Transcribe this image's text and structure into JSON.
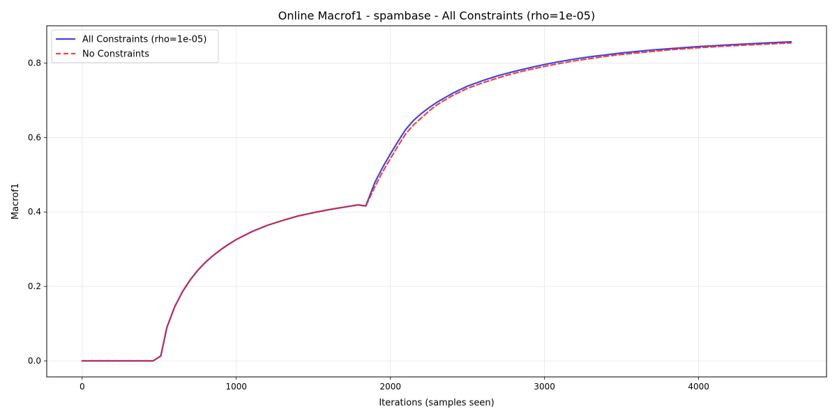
{
  "chart_data": {
    "type": "line",
    "title": "Online Macrof1 - spambase - All Constraints (rho=1e-05)",
    "xlabel": "Iterations (samples seen)",
    "ylabel": "Macrof1",
    "xlim": [
      -230,
      4830
    ],
    "ylim": [
      -0.043,
      0.9
    ],
    "xticks": [
      0,
      1000,
      2000,
      3000,
      4000
    ],
    "yticks": [
      0.0,
      0.2,
      0.4,
      0.6,
      0.8
    ],
    "xtick_labels": [
      "0",
      "1000",
      "2000",
      "3000",
      "4000"
    ],
    "ytick_labels": [
      "0.0",
      "0.2",
      "0.4",
      "0.6",
      "0.8"
    ],
    "grid": true,
    "legend_position": "top-left",
    "series": [
      {
        "name": "All Constraints (rho=1e-05)",
        "color": "#2222dd",
        "style": "solid",
        "x": [
          0,
          100,
          200,
          300,
          400,
          460,
          510,
          550,
          600,
          650,
          700,
          750,
          800,
          850,
          900,
          950,
          1000,
          1100,
          1200,
          1300,
          1400,
          1500,
          1600,
          1700,
          1790,
          1840,
          1900,
          1950,
          2000,
          2050,
          2100,
          2150,
          2200,
          2250,
          2300,
          2400,
          2500,
          2600,
          2700,
          2800,
          2900,
          3000,
          3100,
          3200,
          3300,
          3400,
          3500,
          3600,
          3700,
          3800,
          3900,
          4000,
          4200,
          4400,
          4600
        ],
        "y": [
          0.0,
          0.0,
          0.0,
          0.0,
          0.0,
          0.0,
          0.013,
          0.09,
          0.145,
          0.185,
          0.217,
          0.243,
          0.265,
          0.283,
          0.299,
          0.313,
          0.326,
          0.347,
          0.364,
          0.377,
          0.389,
          0.398,
          0.406,
          0.413,
          0.419,
          0.416,
          0.48,
          0.52,
          0.556,
          0.59,
          0.622,
          0.646,
          0.664,
          0.68,
          0.694,
          0.718,
          0.738,
          0.753,
          0.766,
          0.777,
          0.787,
          0.796,
          0.804,
          0.811,
          0.817,
          0.822,
          0.827,
          0.831,
          0.835,
          0.838,
          0.841,
          0.844,
          0.849,
          0.853,
          0.857
        ]
      },
      {
        "name": "No Constraints",
        "color": "#ee2222",
        "style": "dashed",
        "x": [
          0,
          100,
          200,
          300,
          400,
          460,
          510,
          550,
          600,
          650,
          700,
          750,
          800,
          850,
          900,
          950,
          1000,
          1100,
          1200,
          1300,
          1400,
          1500,
          1600,
          1700,
          1790,
          1840,
          1900,
          1950,
          2000,
          2050,
          2100,
          2150,
          2200,
          2250,
          2300,
          2400,
          2500,
          2600,
          2700,
          2800,
          2900,
          3000,
          3100,
          3200,
          3300,
          3400,
          3500,
          3600,
          3700,
          3800,
          3900,
          4000,
          4200,
          4400,
          4600
        ],
        "y": [
          0.0,
          0.0,
          0.0,
          0.0,
          0.0,
          0.0,
          0.013,
          0.09,
          0.145,
          0.185,
          0.217,
          0.243,
          0.265,
          0.283,
          0.299,
          0.313,
          0.326,
          0.347,
          0.364,
          0.377,
          0.389,
          0.398,
          0.406,
          0.413,
          0.419,
          0.416,
          0.468,
          0.508,
          0.543,
          0.578,
          0.61,
          0.634,
          0.652,
          0.671,
          0.687,
          0.712,
          0.732,
          0.747,
          0.76,
          0.772,
          0.782,
          0.791,
          0.799,
          0.806,
          0.812,
          0.818,
          0.823,
          0.827,
          0.831,
          0.835,
          0.838,
          0.841,
          0.846,
          0.85,
          0.854
        ]
      }
    ]
  }
}
